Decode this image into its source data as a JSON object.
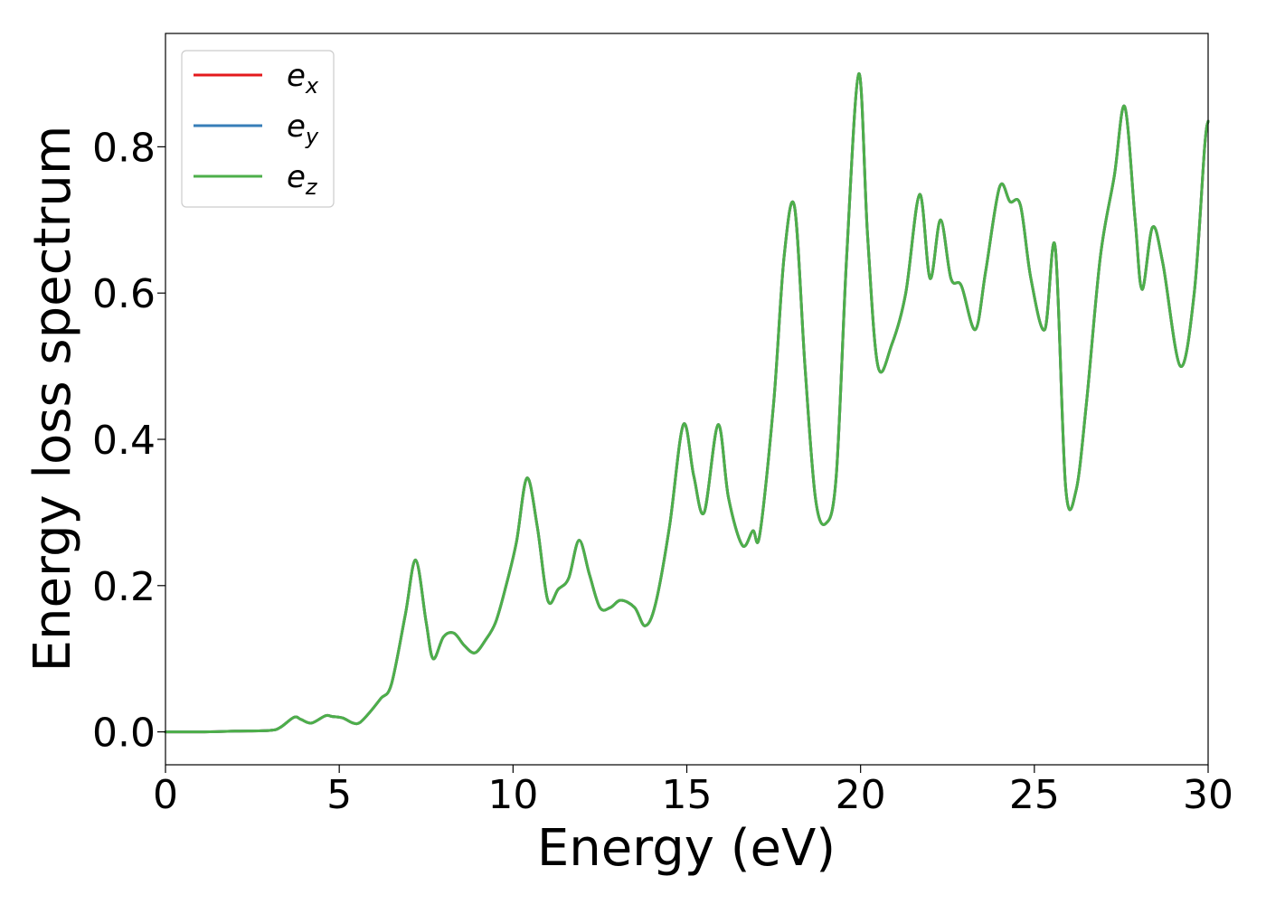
{
  "chart_data": {
    "type": "line",
    "xlabel": "Energy (eV)",
    "ylabel": "Energy loss spectrum",
    "xlim": [
      0,
      30
    ],
    "ylim": [
      -0.045,
      0.955
    ],
    "x_ticks": [
      "0",
      "5",
      "10",
      "15",
      "20",
      "25",
      "30"
    ],
    "y_ticks": [
      "0.0",
      "0.2",
      "0.4",
      "0.6",
      "0.8"
    ],
    "grid": false,
    "legend_position": "upper-left",
    "x": [
      0,
      1,
      2,
      3,
      3.3,
      3.7,
      3.9,
      4.2,
      4.6,
      4.8,
      5.1,
      5.4,
      5.6,
      5.9,
      6.2,
      6.5,
      6.9,
      7.2,
      7.5,
      7.7,
      8.0,
      8.3,
      8.6,
      8.9,
      9.2,
      9.5,
      9.8,
      10.1,
      10.4,
      10.7,
      11.0,
      11.3,
      11.6,
      11.9,
      12.2,
      12.5,
      12.8,
      13.1,
      13.5,
      13.8,
      14.1,
      14.5,
      14.9,
      15.2,
      15.5,
      15.9,
      16.2,
      16.6,
      16.9,
      17.1,
      17.5,
      17.8,
      18.1,
      18.4,
      18.7,
      19.0,
      19.3,
      19.6,
      19.95,
      20.2,
      20.5,
      20.9,
      21.3,
      21.7,
      22.0,
      22.3,
      22.6,
      22.9,
      23.3,
      23.6,
      24.0,
      24.3,
      24.6,
      24.9,
      25.3,
      25.6,
      25.9,
      26.2,
      26.5,
      26.9,
      27.3,
      27.6,
      27.9,
      28.1,
      28.4,
      28.7,
      29.2,
      29.6,
      29.9,
      30.0
    ],
    "series": [
      {
        "name": "e_x",
        "color": "#e41a1c",
        "values": [
          0.0,
          0.0,
          0.001,
          0.002,
          0.006,
          0.02,
          0.017,
          0.012,
          0.022,
          0.021,
          0.019,
          0.012,
          0.013,
          0.028,
          0.046,
          0.065,
          0.16,
          0.235,
          0.15,
          0.1,
          0.13,
          0.135,
          0.118,
          0.108,
          0.125,
          0.15,
          0.2,
          0.26,
          0.347,
          0.28,
          0.18,
          0.195,
          0.21,
          0.262,
          0.215,
          0.17,
          0.17,
          0.18,
          0.17,
          0.145,
          0.175,
          0.28,
          0.42,
          0.35,
          0.3,
          0.42,
          0.32,
          0.255,
          0.275,
          0.27,
          0.45,
          0.65,
          0.718,
          0.5,
          0.32,
          0.285,
          0.35,
          0.65,
          0.9,
          0.68,
          0.5,
          0.53,
          0.6,
          0.735,
          0.62,
          0.7,
          0.62,
          0.61,
          0.55,
          0.63,
          0.745,
          0.725,
          0.72,
          0.62,
          0.55,
          0.663,
          0.335,
          0.33,
          0.45,
          0.65,
          0.76,
          0.855,
          0.7,
          0.605,
          0.69,
          0.64,
          0.5,
          0.6,
          0.8,
          0.835
        ]
      },
      {
        "name": "e_y",
        "color": "#377eb8",
        "values": [
          0.0,
          0.0,
          0.001,
          0.002,
          0.006,
          0.02,
          0.017,
          0.012,
          0.022,
          0.021,
          0.019,
          0.012,
          0.013,
          0.028,
          0.046,
          0.065,
          0.16,
          0.235,
          0.15,
          0.1,
          0.13,
          0.135,
          0.118,
          0.108,
          0.125,
          0.15,
          0.2,
          0.26,
          0.347,
          0.28,
          0.18,
          0.195,
          0.21,
          0.262,
          0.215,
          0.17,
          0.17,
          0.18,
          0.17,
          0.145,
          0.175,
          0.28,
          0.42,
          0.35,
          0.3,
          0.42,
          0.32,
          0.255,
          0.275,
          0.27,
          0.45,
          0.65,
          0.718,
          0.5,
          0.32,
          0.285,
          0.35,
          0.65,
          0.9,
          0.68,
          0.5,
          0.53,
          0.6,
          0.735,
          0.62,
          0.7,
          0.62,
          0.61,
          0.55,
          0.63,
          0.745,
          0.725,
          0.72,
          0.62,
          0.55,
          0.663,
          0.335,
          0.33,
          0.45,
          0.65,
          0.76,
          0.855,
          0.7,
          0.605,
          0.69,
          0.64,
          0.5,
          0.6,
          0.8,
          0.835
        ]
      },
      {
        "name": "e_z",
        "color": "#4daf4a",
        "values": [
          0.0,
          0.0,
          0.001,
          0.002,
          0.006,
          0.02,
          0.017,
          0.012,
          0.022,
          0.021,
          0.019,
          0.012,
          0.013,
          0.028,
          0.046,
          0.065,
          0.16,
          0.235,
          0.15,
          0.1,
          0.13,
          0.135,
          0.118,
          0.108,
          0.125,
          0.15,
          0.2,
          0.26,
          0.347,
          0.28,
          0.18,
          0.195,
          0.21,
          0.262,
          0.215,
          0.17,
          0.17,
          0.18,
          0.17,
          0.145,
          0.175,
          0.28,
          0.42,
          0.35,
          0.3,
          0.42,
          0.32,
          0.255,
          0.275,
          0.27,
          0.45,
          0.65,
          0.718,
          0.5,
          0.32,
          0.285,
          0.35,
          0.65,
          0.9,
          0.68,
          0.5,
          0.53,
          0.6,
          0.735,
          0.62,
          0.7,
          0.62,
          0.61,
          0.55,
          0.63,
          0.745,
          0.725,
          0.72,
          0.62,
          0.55,
          0.663,
          0.335,
          0.33,
          0.45,
          0.65,
          0.76,
          0.855,
          0.7,
          0.605,
          0.69,
          0.64,
          0.5,
          0.6,
          0.8,
          0.835
        ]
      }
    ],
    "legend": [
      {
        "base": "e",
        "sub": "x",
        "color": "#e41a1c"
      },
      {
        "base": "e",
        "sub": "y",
        "color": "#377eb8"
      },
      {
        "base": "e",
        "sub": "z",
        "color": "#4daf4a"
      }
    ]
  }
}
